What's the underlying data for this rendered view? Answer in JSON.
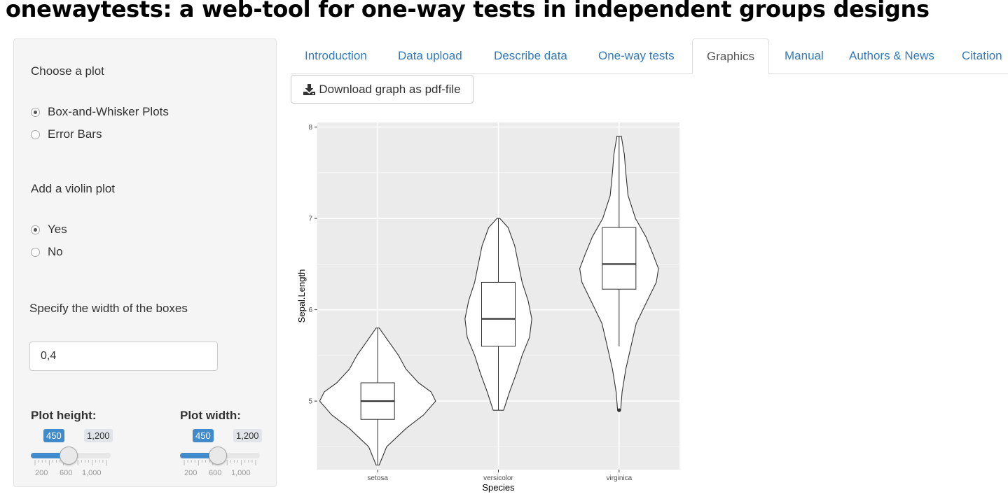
{
  "page": {
    "title": "onewaytests: a web-tool for one-way tests in independent groups designs"
  },
  "sidebar": {
    "plot_type": {
      "label": "Choose a plot",
      "options": [
        {
          "label": "Box-and-Whisker Plots",
          "selected": true
        },
        {
          "label": "Error Bars",
          "selected": false
        }
      ]
    },
    "violin": {
      "label": "Add a violin plot",
      "options": [
        {
          "label": "Yes",
          "selected": true
        },
        {
          "label": "No",
          "selected": false
        }
      ]
    },
    "box_width": {
      "label": "Specify the width of the boxes",
      "value": "0,4"
    },
    "plot_height": {
      "label": "Plot height:",
      "value": "450",
      "max_label": "1,200",
      "min": 200,
      "max": 1200,
      "current": 450,
      "tick_labels": [
        "200",
        "600",
        "1,000"
      ]
    },
    "plot_width": {
      "label": "Plot width:",
      "value": "450",
      "max_label": "1,200",
      "min": 200,
      "max": 1200,
      "current": 450,
      "tick_labels": [
        "200",
        "600",
        "1,000"
      ]
    }
  },
  "tabs": [
    {
      "label": "Introduction",
      "active": false
    },
    {
      "label": "Data upload",
      "active": false
    },
    {
      "label": "Describe data",
      "active": false
    },
    {
      "label": "One-way tests",
      "active": false
    },
    {
      "label": "Graphics",
      "active": true
    },
    {
      "label": "Manual",
      "active": false
    },
    {
      "label": "Authors & News",
      "active": false
    },
    {
      "label": "Citation",
      "active": false
    }
  ],
  "download": {
    "label": "Download graph as pdf-file",
    "icon": "download-icon"
  },
  "chart_data": {
    "type": "box",
    "overlay": "violin",
    "xlabel": "Species",
    "ylabel": "Sepal.Length",
    "categories": [
      "setosa",
      "versicolor",
      "virginica"
    ],
    "ylim": [
      4.25,
      8.05
    ],
    "yticks": [
      "5",
      "6",
      "7",
      "8"
    ],
    "background": "#ebebeb",
    "grid": true,
    "boxes": [
      {
        "min": 4.3,
        "q1": 4.8,
        "median": 5.0,
        "q3": 5.2,
        "max": 5.8,
        "outliers": []
      },
      {
        "min": 4.9,
        "q1": 5.6,
        "median": 5.9,
        "q3": 6.3,
        "max": 7.0,
        "outliers": []
      },
      {
        "min": 5.6,
        "q1": 6.225,
        "median": 6.5,
        "q3": 6.9,
        "max": 7.9,
        "outliers": [
          4.9
        ]
      }
    ],
    "violins": [
      [
        [
          4.3,
          0.02
        ],
        [
          4.5,
          0.12
        ],
        [
          4.7,
          0.38
        ],
        [
          4.85,
          0.62
        ],
        [
          5.0,
          0.78
        ],
        [
          5.1,
          0.72
        ],
        [
          5.2,
          0.55
        ],
        [
          5.35,
          0.38
        ],
        [
          5.5,
          0.28
        ],
        [
          5.65,
          0.15
        ],
        [
          5.8,
          0.02
        ]
      ],
      [
        [
          4.9,
          0.07
        ],
        [
          5.1,
          0.15
        ],
        [
          5.3,
          0.24
        ],
        [
          5.5,
          0.32
        ],
        [
          5.7,
          0.42
        ],
        [
          5.9,
          0.45
        ],
        [
          6.1,
          0.4
        ],
        [
          6.3,
          0.32
        ],
        [
          6.5,
          0.27
        ],
        [
          6.7,
          0.22
        ],
        [
          6.9,
          0.13
        ],
        [
          7.0,
          0.02
        ]
      ],
      [
        [
          4.9,
          0.02
        ],
        [
          5.1,
          0.04
        ],
        [
          5.35,
          0.09
        ],
        [
          5.6,
          0.16
        ],
        [
          5.85,
          0.23
        ],
        [
          6.1,
          0.38
        ],
        [
          6.3,
          0.5
        ],
        [
          6.45,
          0.53
        ],
        [
          6.6,
          0.46
        ],
        [
          6.8,
          0.36
        ],
        [
          7.0,
          0.22
        ],
        [
          7.25,
          0.12
        ],
        [
          7.5,
          0.09
        ],
        [
          7.7,
          0.07
        ],
        [
          7.9,
          0.03
        ]
      ]
    ]
  }
}
